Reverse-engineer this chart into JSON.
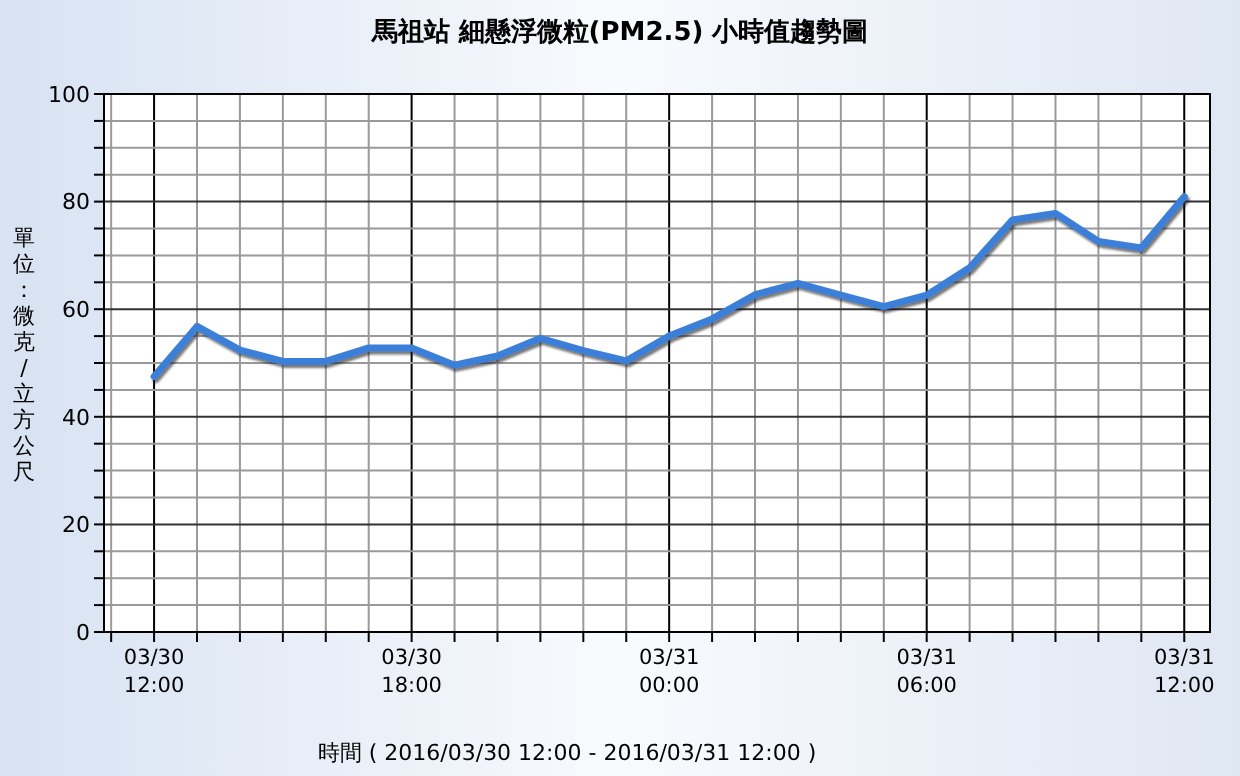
{
  "chart_data": {
    "type": "line",
    "title": "馬祖站  細懸浮微粒(PM2.5) 小時值趨勢圖",
    "xlabel": "時間 ( 2016/03/30 12:00 - 2016/03/31 12:00 )",
    "ylabel": "單位：微克/立方公尺",
    "x": [
      "2016-03-30T12:00",
      "2016-03-30T13:00",
      "2016-03-30T14:00",
      "2016-03-30T15:00",
      "2016-03-30T16:00",
      "2016-03-30T17:00",
      "2016-03-30T18:00",
      "2016-03-30T19:00",
      "2016-03-30T20:00",
      "2016-03-30T21:00",
      "2016-03-30T22:00",
      "2016-03-30T23:00",
      "2016-03-31T00:00",
      "2016-03-31T01:00",
      "2016-03-31T02:00",
      "2016-03-31T03:00",
      "2016-03-31T04:00",
      "2016-03-31T05:00",
      "2016-03-31T06:00",
      "2016-03-31T07:00",
      "2016-03-31T08:00",
      "2016-03-31T09:00",
      "2016-03-31T10:00",
      "2016-03-31T11:00",
      "2016-03-31T12:00"
    ],
    "series": [
      {
        "color": "#3a7fd8",
        "values": [
          47.5,
          56.8,
          52.4,
          50.3,
          50.3,
          52.8,
          52.8,
          49.6,
          51.3,
          54.6,
          52.3,
          50.4,
          55,
          58.2,
          62.7,
          64.8,
          62.6,
          60.5,
          62.6,
          67.7,
          76.6,
          77.8,
          72.6,
          71.4,
          80.9
        ]
      }
    ],
    "xlim": [
      "2016-03-30T10:50",
      "2016-03-31T12:36"
    ],
    "xticks": [
      {
        "value": "2016-03-30T11:00",
        "label": null
      },
      {
        "value": "2016-03-30T12:00",
        "label": "03/30 12:00"
      },
      {
        "value": "2016-03-30T13:00",
        "label": null
      },
      {
        "value": "2016-03-30T14:00",
        "label": null
      },
      {
        "value": "2016-03-30T15:00",
        "label": null
      },
      {
        "value": "2016-03-30T16:00",
        "label": null
      },
      {
        "value": "2016-03-30T17:00",
        "label": null
      },
      {
        "value": "2016-03-30T18:00",
        "label": "03/30 18:00"
      },
      {
        "value": "2016-03-30T19:00",
        "label": null
      },
      {
        "value": "2016-03-30T20:00",
        "label": null
      },
      {
        "value": "2016-03-30T21:00",
        "label": null
      },
      {
        "value": "2016-03-30T22:00",
        "label": null
      },
      {
        "value": "2016-03-30T23:00",
        "label": null
      },
      {
        "value": "2016-03-31T00:00",
        "label": "03/31 00:00"
      },
      {
        "value": "2016-03-31T01:00",
        "label": null
      },
      {
        "value": "2016-03-31T02:00",
        "label": null
      },
      {
        "value": "2016-03-31T03:00",
        "label": null
      },
      {
        "value": "2016-03-31T04:00",
        "label": null
      },
      {
        "value": "2016-03-31T05:00",
        "label": null
      },
      {
        "value": "2016-03-31T06:00",
        "label": "03/31 06:00"
      },
      {
        "value": "2016-03-31T07:00",
        "label": null
      },
      {
        "value": "2016-03-31T08:00",
        "label": null
      },
      {
        "value": "2016-03-31T09:00",
        "label": null
      },
      {
        "value": "2016-03-31T10:00",
        "label": null
      },
      {
        "value": "2016-03-31T11:00",
        "label": null
      },
      {
        "value": "2016-03-31T12:00",
        "label": "03/31 12:00"
      }
    ],
    "ylim": [
      0,
      100
    ],
    "yticks": [
      0,
      {
        "value": 5,
        "label": null
      },
      {
        "value": 10,
        "label": null
      },
      {
        "value": 15,
        "label": null
      },
      20,
      {
        "value": 25,
        "label": null
      },
      {
        "value": 30,
        "label": null
      },
      {
        "value": 35,
        "label": null
      },
      40,
      {
        "value": 45,
        "label": null
      },
      {
        "value": 50,
        "label": null
      },
      {
        "value": 55,
        "label": null
      },
      60,
      {
        "value": 65,
        "label": null
      },
      {
        "value": 70,
        "label": null
      },
      {
        "value": 75,
        "label": null
      },
      80,
      {
        "value": 85,
        "label": null
      },
      {
        "value": 90,
        "label": null
      },
      {
        "value": 95,
        "label": null
      },
      100
    ],
    "grid": true,
    "marker": "none",
    "line_style": "solid"
  }
}
